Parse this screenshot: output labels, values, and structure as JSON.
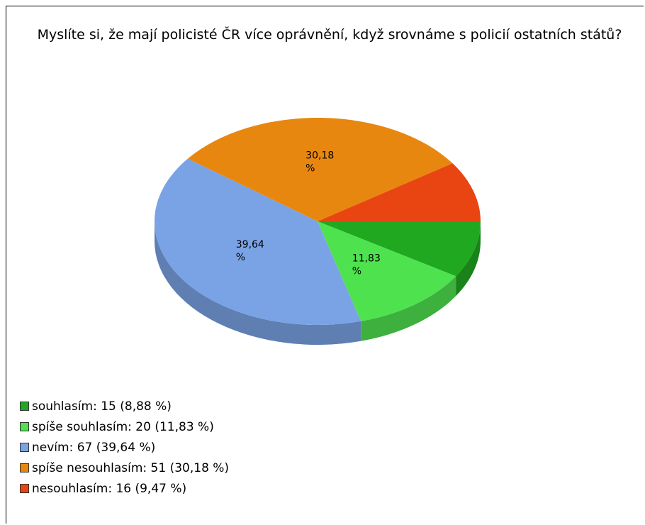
{
  "chart_data": {
    "type": "pie",
    "title": "Myslíte si, že mají policisté ČR více oprávnění, když srovnáme s policií ostatních států?",
    "categories": [
      "souhlasím: 15 (8,88 %)",
      "spíše souhlasím: 20 (11,83 %)",
      "nevím: 67 (39,64 %)",
      "spíše nesouhlasím: 51 (30,18 %)",
      "nesouhlasím: 16 (9,47 %)"
    ],
    "values": [
      8.88,
      11.83,
      39.64,
      30.18,
      9.47
    ],
    "value_labels": [
      null,
      "11,83 %",
      "39,64 %",
      "30,18 %",
      null
    ],
    "colors": [
      "#20a820",
      "#4fe24f",
      "#7aa3e6",
      "#e8870f",
      "#e84513"
    ],
    "legend": "bottom-left"
  }
}
